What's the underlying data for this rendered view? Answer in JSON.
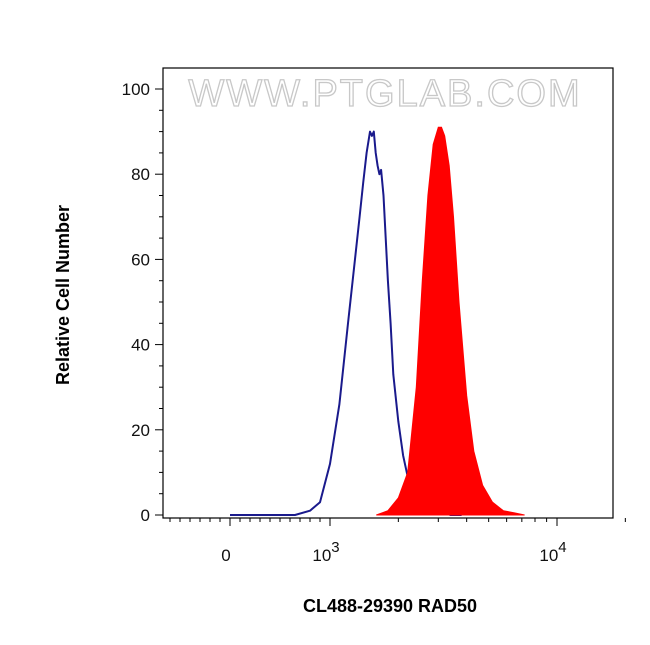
{
  "chart_data": {
    "type": "area",
    "watermark": "WWW.PTGLAB.COM",
    "xlabel": "CL488-29390 RAD50",
    "ylabel": "Relative Cell Number",
    "xscale": "log (biexponential)",
    "ylim": [
      0,
      100
    ],
    "x_ticks": [
      {
        "label": "0",
        "exp": ""
      },
      {
        "label": "10",
        "exp": "3"
      },
      {
        "label": "10",
        "exp": "4"
      }
    ],
    "y_ticks": [
      "0",
      "20",
      "40",
      "60",
      "80",
      "100"
    ],
    "grid": false,
    "series": [
      {
        "style": "outline",
        "color": "#1a1a8c",
        "x": [
          0,
          200,
          300,
          450,
          650,
          800,
          900,
          1000,
          1100,
          1200,
          1300,
          1350,
          1400,
          1450,
          1500,
          1530,
          1560,
          1590,
          1620,
          1650,
          1680,
          1720,
          1760,
          1800,
          1850,
          1900,
          2000,
          2100,
          2200,
          2300,
          2500,
          2700,
          3000,
          3400,
          3800
        ],
        "y": [
          0,
          0,
          0,
          0,
          0,
          1,
          3,
          12,
          26,
          45,
          62,
          70,
          78,
          85,
          90,
          89,
          90,
          85,
          82,
          80,
          81,
          75,
          65,
          55,
          45,
          33,
          22,
          14,
          9,
          6,
          4,
          2,
          1,
          0,
          0
        ]
      },
      {
        "style": "filled",
        "color": "#ff0000",
        "x": [
          1600,
          1800,
          2000,
          2200,
          2400,
          2550,
          2700,
          2850,
          3000,
          3100,
          3200,
          3350,
          3500,
          3700,
          4000,
          4300,
          4700,
          5200,
          5800,
          6500,
          7200
        ],
        "y": [
          0,
          1,
          4,
          10,
          30,
          55,
          75,
          87,
          91,
          91,
          89,
          82,
          70,
          50,
          28,
          15,
          7,
          3,
          1,
          0.5,
          0
        ]
      }
    ]
  }
}
